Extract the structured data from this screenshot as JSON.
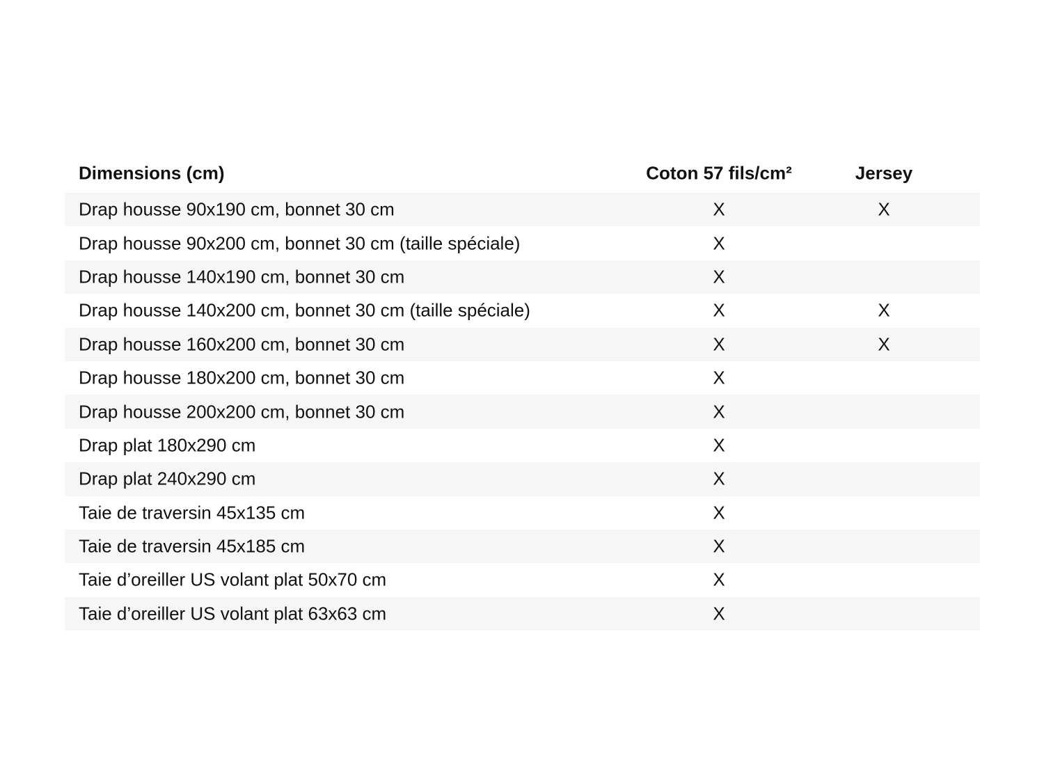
{
  "table": {
    "headers": [
      "Dimensions (cm)",
      "Coton 57 fils/cm²",
      "Jersey"
    ],
    "stripe_color": "#f6f6f6",
    "rows": [
      {
        "label": "Drap housse 90x190 cm, bonnet 30 cm",
        "coton": "X",
        "jersey": "X"
      },
      {
        "label": "Drap housse 90x200 cm, bonnet 30 cm (taille spéciale)",
        "coton": "X",
        "jersey": ""
      },
      {
        "label": "Drap housse 140x190 cm, bonnet 30 cm",
        "coton": "X",
        "jersey": ""
      },
      {
        "label": "Drap housse 140x200 cm, bonnet 30 cm (taille spéciale)",
        "coton": "X",
        "jersey": "X"
      },
      {
        "label": "Drap housse 160x200 cm, bonnet 30 cm",
        "coton": "X",
        "jersey": "X"
      },
      {
        "label": "Drap housse 180x200 cm, bonnet 30 cm",
        "coton": "X",
        "jersey": ""
      },
      {
        "label": "Drap housse 200x200 cm, bonnet 30 cm",
        "coton": "X",
        "jersey": ""
      },
      {
        "label": "Drap plat 180x290 cm",
        "coton": "X",
        "jersey": ""
      },
      {
        "label": "Drap plat 240x290 cm",
        "coton": "X",
        "jersey": ""
      },
      {
        "label": "Taie de traversin 45x135 cm",
        "coton": "X",
        "jersey": ""
      },
      {
        "label": "Taie de traversin 45x185 cm",
        "coton": "X",
        "jersey": ""
      },
      {
        "label": "Taie d’oreiller US volant plat 50x70 cm",
        "coton": "X",
        "jersey": ""
      },
      {
        "label": "Taie d’oreiller US volant plat 63x63 cm",
        "coton": "X",
        "jersey": ""
      }
    ]
  }
}
